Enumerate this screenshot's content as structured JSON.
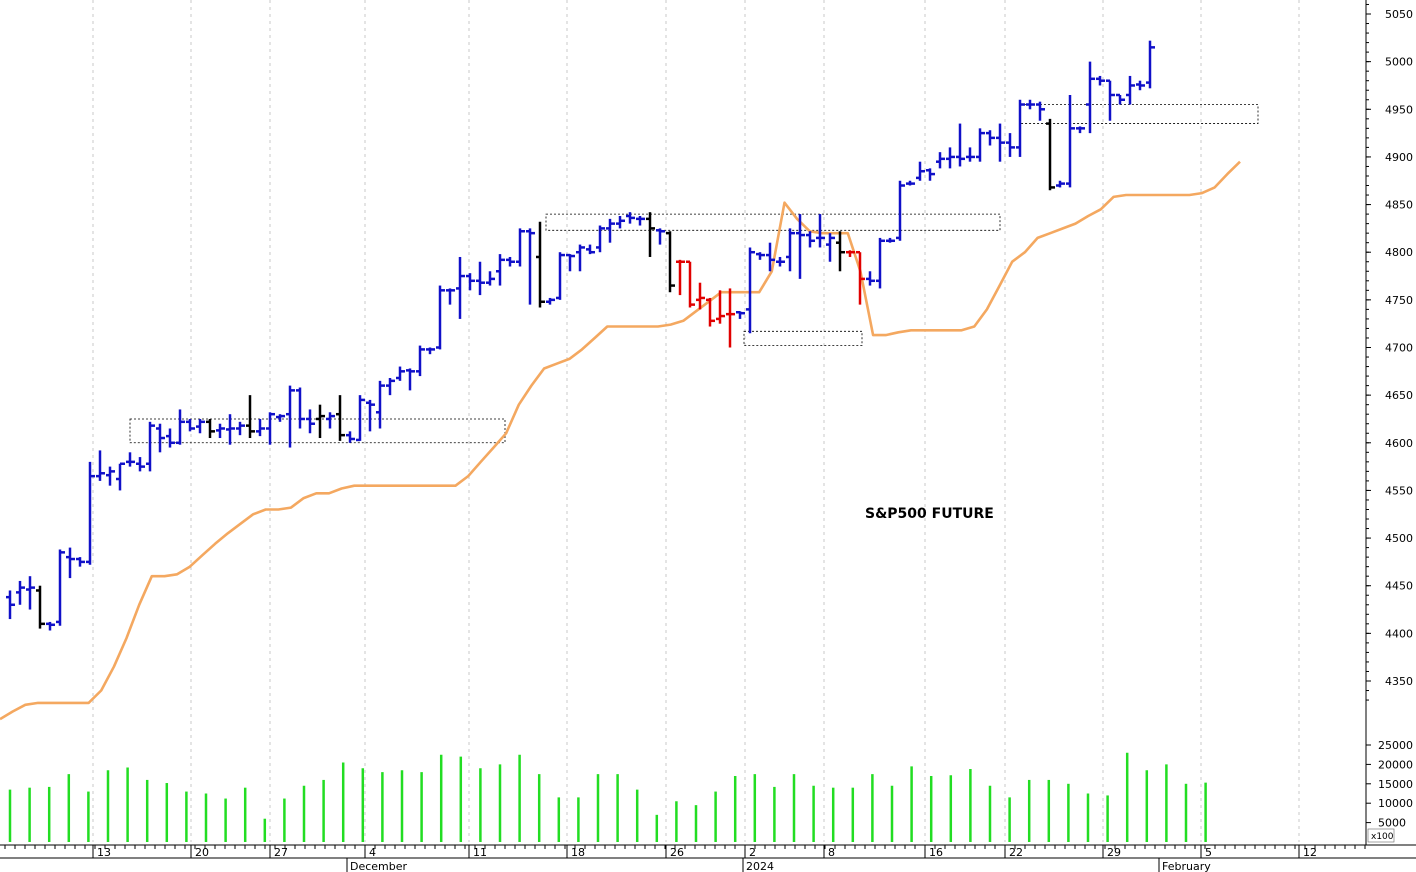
{
  "chart_data": {
    "type": "ohlc",
    "title": "S&P500 FUTURE",
    "colors": {
      "up": "#1010c8",
      "neutral": "#000000",
      "down": "#e00000",
      "trail": "#f4a860",
      "volume": "#22dd22",
      "grid": "#c8c8c8",
      "box": "#000000"
    },
    "y_ticks": [
      "4350",
      "4400",
      "4450",
      "4500",
      "4550",
      "4600",
      "4650",
      "4700",
      "4750",
      "4800",
      "4850",
      "4900",
      "4950",
      "5000",
      "5050"
    ],
    "ylim": [
      4310,
      5065
    ],
    "volume_ticks": [
      "5000",
      "10000",
      "15000",
      "20000",
      "25000"
    ],
    "volume_unit": "x100",
    "x_day_labels": [
      "13",
      "20",
      "27",
      "4",
      "11",
      "18",
      "26",
      "2",
      "8",
      "16",
      "22",
      "29",
      "5",
      "12"
    ],
    "x_month_labels": [
      "December",
      "2024",
      "February"
    ],
    "bars": [
      {
        "h": 4445,
        "l": 4415,
        "c": 4430,
        "o": 4438,
        "col": "up"
      },
      {
        "h": 4455,
        "l": 4430,
        "c": 4448,
        "o": 4443,
        "col": "up"
      },
      {
        "h": 4460,
        "l": 4425,
        "c": 4448,
        "o": 4446,
        "col": "up"
      },
      {
        "h": 4450,
        "l": 4405,
        "c": 4410,
        "o": 4445,
        "col": "neutral"
      },
      {
        "h": 4412,
        "l": 4403,
        "c": 4409,
        "o": 4410,
        "col": "up"
      },
      {
        "h": 4488,
        "l": 4408,
        "c": 4485,
        "o": 4412,
        "col": "up"
      },
      {
        "h": 4490,
        "l": 4458,
        "c": 4478,
        "o": 4480,
        "col": "up"
      },
      {
        "h": 4480,
        "l": 4470,
        "c": 4475,
        "o": 4478,
        "col": "up"
      },
      {
        "h": 4580,
        "l": 4472,
        "c": 4565,
        "o": 4475,
        "col": "up"
      },
      {
        "h": 4592,
        "l": 4560,
        "c": 4568,
        "o": 4565,
        "col": "up"
      },
      {
        "h": 4575,
        "l": 4555,
        "c": 4570,
        "o": 4566,
        "col": "up"
      },
      {
        "h": 4578,
        "l": 4550,
        "c": 4578,
        "o": 4562,
        "col": "up"
      },
      {
        "h": 4590,
        "l": 4575,
        "c": 4580,
        "o": 4580,
        "col": "up"
      },
      {
        "h": 4585,
        "l": 4570,
        "c": 4575,
        "o": 4578,
        "col": "up"
      },
      {
        "h": 4622,
        "l": 4570,
        "c": 4618,
        "o": 4578,
        "col": "up"
      },
      {
        "h": 4620,
        "l": 4590,
        "c": 4605,
        "o": 4615,
        "col": "up"
      },
      {
        "h": 4615,
        "l": 4595,
        "c": 4600,
        "o": 4607,
        "col": "up"
      },
      {
        "h": 4635,
        "l": 4598,
        "c": 4622,
        "o": 4600,
        "col": "up"
      },
      {
        "h": 4625,
        "l": 4612,
        "c": 4615,
        "o": 4622,
        "col": "up"
      },
      {
        "h": 4625,
        "l": 4610,
        "c": 4622,
        "o": 4617,
        "col": "up"
      },
      {
        "h": 4625,
        "l": 4605,
        "c": 4612,
        "o": 4622,
        "col": "neutral"
      },
      {
        "h": 4620,
        "l": 4605,
        "c": 4615,
        "o": 4613,
        "col": "up"
      },
      {
        "h": 4630,
        "l": 4598,
        "c": 4615,
        "o": 4614,
        "col": "up"
      },
      {
        "h": 4622,
        "l": 4608,
        "c": 4618,
        "o": 4615,
        "col": "up"
      },
      {
        "h": 4650,
        "l": 4605,
        "c": 4612,
        "o": 4618,
        "col": "neutral"
      },
      {
        "h": 4625,
        "l": 4607,
        "c": 4615,
        "o": 4612,
        "col": "up"
      },
      {
        "h": 4632,
        "l": 4598,
        "c": 4630,
        "o": 4615,
        "col": "up"
      },
      {
        "h": 4630,
        "l": 4622,
        "c": 4628,
        "o": 4627,
        "col": "up"
      },
      {
        "h": 4660,
        "l": 4595,
        "c": 4655,
        "o": 4630,
        "col": "up"
      },
      {
        "h": 4658,
        "l": 4615,
        "c": 4625,
        "o": 4655,
        "col": "up"
      },
      {
        "h": 4635,
        "l": 4610,
        "c": 4620,
        "o": 4625,
        "col": "up"
      },
      {
        "h": 4640,
        "l": 4605,
        "c": 4628,
        "o": 4625,
        "col": "neutral"
      },
      {
        "h": 4632,
        "l": 4615,
        "c": 4628,
        "o": 4625,
        "col": "up"
      },
      {
        "h": 4650,
        "l": 4602,
        "c": 4608,
        "o": 4630,
        "col": "neutral"
      },
      {
        "h": 4612,
        "l": 4600,
        "c": 4604,
        "o": 4608,
        "col": "up"
      },
      {
        "h": 4650,
        "l": 4602,
        "c": 4645,
        "o": 4603,
        "col": "up"
      },
      {
        "h": 4645,
        "l": 4612,
        "c": 4640,
        "o": 4642,
        "col": "up"
      },
      {
        "h": 4665,
        "l": 4615,
        "c": 4660,
        "o": 4632,
        "col": "up"
      },
      {
        "h": 4668,
        "l": 4650,
        "c": 4665,
        "o": 4660,
        "col": "up"
      },
      {
        "h": 4680,
        "l": 4665,
        "c": 4675,
        "o": 4668,
        "col": "up"
      },
      {
        "h": 4678,
        "l": 4655,
        "c": 4675,
        "o": 4676,
        "col": "up"
      },
      {
        "h": 4702,
        "l": 4670,
        "c": 4698,
        "o": 4675,
        "col": "up"
      },
      {
        "h": 4700,
        "l": 4693,
        "c": 4698,
        "o": 4698,
        "col": "up"
      },
      {
        "h": 4765,
        "l": 4698,
        "c": 4760,
        "o": 4700,
        "col": "up"
      },
      {
        "h": 4762,
        "l": 4745,
        "c": 4760,
        "o": 4760,
        "col": "up"
      },
      {
        "h": 4795,
        "l": 4730,
        "c": 4775,
        "o": 4762,
        "col": "up"
      },
      {
        "h": 4778,
        "l": 4760,
        "c": 4770,
        "o": 4775,
        "col": "up"
      },
      {
        "h": 4790,
        "l": 4755,
        "c": 4768,
        "o": 4770,
        "col": "up"
      },
      {
        "h": 4780,
        "l": 4765,
        "c": 4772,
        "o": 4768,
        "col": "up"
      },
      {
        "h": 4798,
        "l": 4765,
        "c": 4792,
        "o": 4780,
        "col": "up"
      },
      {
        "h": 4795,
        "l": 4785,
        "c": 4790,
        "o": 4792,
        "col": "up"
      },
      {
        "h": 4825,
        "l": 4785,
        "c": 4822,
        "o": 4790,
        "col": "up"
      },
      {
        "h": 4825,
        "l": 4745,
        "c": 4820,
        "o": 4822,
        "col": "up"
      },
      {
        "h": 4832,
        "l": 4742,
        "c": 4748,
        "o": 4795,
        "col": "neutral"
      },
      {
        "h": 4752,
        "l": 4745,
        "c": 4750,
        "o": 4748,
        "col": "up"
      },
      {
        "h": 4800,
        "l": 4750,
        "c": 4797,
        "o": 4752,
        "col": "up"
      },
      {
        "h": 4798,
        "l": 4780,
        "c": 4796,
        "o": 4797,
        "col": "up"
      },
      {
        "h": 4808,
        "l": 4780,
        "c": 4805,
        "o": 4800,
        "col": "up"
      },
      {
        "h": 4808,
        "l": 4798,
        "c": 4800,
        "o": 4803,
        "col": "up"
      },
      {
        "h": 4828,
        "l": 4800,
        "c": 4825,
        "o": 4805,
        "col": "up"
      },
      {
        "h": 4835,
        "l": 4810,
        "c": 4830,
        "o": 4825,
        "col": "up"
      },
      {
        "h": 4838,
        "l": 4825,
        "c": 4833,
        "o": 4830,
        "col": "up"
      },
      {
        "h": 4842,
        "l": 4830,
        "c": 4836,
        "o": 4838,
        "col": "up"
      },
      {
        "h": 4838,
        "l": 4828,
        "c": 4835,
        "o": 4835,
        "col": "up"
      },
      {
        "h": 4842,
        "l": 4795,
        "c": 4825,
        "o": 4835,
        "col": "neutral"
      },
      {
        "h": 4825,
        "l": 4808,
        "c": 4822,
        "o": 4823,
        "col": "up"
      },
      {
        "h": 4822,
        "l": 4758,
        "c": 4765,
        "o": 4820,
        "col": "neutral"
      },
      {
        "h": 4792,
        "l": 4755,
        "c": 4790,
        "o": 4790,
        "col": "down"
      },
      {
        "h": 4790,
        "l": 4742,
        "c": 4745,
        "o": 4790,
        "col": "down"
      },
      {
        "h": 4768,
        "l": 4740,
        "c": 4752,
        "o": 4750,
        "col": "down"
      },
      {
        "h": 4752,
        "l": 4722,
        "c": 4728,
        "o": 4750,
        "col": "down"
      },
      {
        "h": 4760,
        "l": 4725,
        "c": 4733,
        "o": 4730,
        "col": "down"
      },
      {
        "h": 4762,
        "l": 4700,
        "c": 4735,
        "o": 4735,
        "col": "down"
      },
      {
        "h": 4738,
        "l": 4730,
        "c": 4736,
        "o": 4737,
        "col": "up"
      },
      {
        "h": 4805,
        "l": 4715,
        "c": 4800,
        "o": 4740,
        "col": "up"
      },
      {
        "h": 4800,
        "l": 4792,
        "c": 4797,
        "o": 4798,
        "col": "up"
      },
      {
        "h": 4810,
        "l": 4780,
        "c": 4792,
        "o": 4797,
        "col": "up"
      },
      {
        "h": 4795,
        "l": 4785,
        "c": 4790,
        "o": 4790,
        "col": "up"
      },
      {
        "h": 4825,
        "l": 4780,
        "c": 4820,
        "o": 4795,
        "col": "up"
      },
      {
        "h": 4840,
        "l": 4772,
        "c": 4818,
        "o": 4820,
        "col": "up"
      },
      {
        "h": 4822,
        "l": 4805,
        "c": 4812,
        "o": 4818,
        "col": "up"
      },
      {
        "h": 4840,
        "l": 4805,
        "c": 4815,
        "o": 4815,
        "col": "up"
      },
      {
        "h": 4820,
        "l": 4790,
        "c": 4815,
        "o": 4808,
        "col": "up"
      },
      {
        "h": 4822,
        "l": 4780,
        "c": 4800,
        "o": 4810,
        "col": "neutral"
      },
      {
        "h": 4802,
        "l": 4795,
        "c": 4800,
        "o": 4800,
        "col": "down"
      },
      {
        "h": 4800,
        "l": 4745,
        "c": 4772,
        "o": 4800,
        "col": "down"
      },
      {
        "h": 4780,
        "l": 4765,
        "c": 4770,
        "o": 4772,
        "col": "up"
      },
      {
        "h": 4815,
        "l": 4762,
        "c": 4812,
        "o": 4770,
        "col": "up"
      },
      {
        "h": 4815,
        "l": 4810,
        "c": 4812,
        "o": 4812,
        "col": "up"
      },
      {
        "h": 4875,
        "l": 4812,
        "c": 4870,
        "o": 4815,
        "col": "up"
      },
      {
        "h": 4875,
        "l": 4870,
        "c": 4872,
        "o": 4872,
        "col": "up"
      },
      {
        "h": 4895,
        "l": 4875,
        "c": 4885,
        "o": 4878,
        "col": "up"
      },
      {
        "h": 4888,
        "l": 4875,
        "c": 4882,
        "o": 4886,
        "col": "up"
      },
      {
        "h": 4905,
        "l": 4888,
        "c": 4898,
        "o": 4895,
        "col": "up"
      },
      {
        "h": 4910,
        "l": 4888,
        "c": 4900,
        "o": 4898,
        "col": "up"
      },
      {
        "h": 4935,
        "l": 4890,
        "c": 4898,
        "o": 4900,
        "col": "up"
      },
      {
        "h": 4910,
        "l": 4895,
        "c": 4900,
        "o": 4900,
        "col": "up"
      },
      {
        "h": 4930,
        "l": 4895,
        "c": 4925,
        "o": 4900,
        "col": "up"
      },
      {
        "h": 4928,
        "l": 4912,
        "c": 4920,
        "o": 4925,
        "col": "up"
      },
      {
        "h": 4935,
        "l": 4895,
        "c": 4915,
        "o": 4920,
        "col": "up"
      },
      {
        "h": 4925,
        "l": 4900,
        "c": 4910,
        "o": 4915,
        "col": "up"
      },
      {
        "h": 4960,
        "l": 4900,
        "c": 4955,
        "o": 4910,
        "col": "up"
      },
      {
        "h": 4960,
        "l": 4950,
        "c": 4955,
        "o": 4955,
        "col": "up"
      },
      {
        "h": 4958,
        "l": 4938,
        "c": 4950,
        "o": 4955,
        "col": "up"
      },
      {
        "h": 4940,
        "l": 4865,
        "c": 4868,
        "o": 4935,
        "col": "neutral"
      },
      {
        "h": 4875,
        "l": 4868,
        "c": 4872,
        "o": 4870,
        "col": "up"
      },
      {
        "h": 4965,
        "l": 4868,
        "c": 4930,
        "o": 4872,
        "col": "up"
      },
      {
        "h": 4932,
        "l": 4925,
        "c": 4930,
        "o": 4930,
        "col": "up"
      },
      {
        "h": 5000,
        "l": 4925,
        "c": 4982,
        "o": 4955,
        "col": "up"
      },
      {
        "h": 4985,
        "l": 4975,
        "c": 4980,
        "o": 4982,
        "col": "up"
      },
      {
        "h": 4980,
        "l": 4938,
        "c": 4965,
        "o": 4980,
        "col": "up"
      },
      {
        "h": 4965,
        "l": 4955,
        "c": 4960,
        "o": 4965,
        "col": "up"
      },
      {
        "h": 4985,
        "l": 4955,
        "c": 4975,
        "o": 4965,
        "col": "up"
      },
      {
        "h": 4980,
        "l": 4970,
        "c": 4975,
        "o": 4976,
        "col": "up"
      },
      {
        "h": 5022,
        "l": 4972,
        "c": 5015,
        "o": 4978,
        "col": "up"
      }
    ],
    "trail": [
      4310,
      4318,
      4325,
      4327,
      4327,
      4327,
      4327,
      4327,
      4340,
      4365,
      4395,
      4430,
      4460,
      4460,
      4462,
      4470,
      4482,
      4494,
      4505,
      4515,
      4525,
      4530,
      4530,
      4532,
      4542,
      4547,
      4547,
      4552,
      4555,
      4555,
      4555,
      4555,
      4555,
      4555,
      4555,
      4555,
      4555,
      4565,
      4580,
      4595,
      4610,
      4640,
      4660,
      4678,
      4683,
      4688,
      4698,
      4710,
      4722,
      4722,
      4722,
      4722,
      4722,
      4724,
      4728,
      4738,
      4748,
      4758,
      4758,
      4758,
      4758,
      4780,
      4852,
      4835,
      4822,
      4820,
      4820,
      4820,
      4780,
      4713,
      4713,
      4716,
      4718,
      4718,
      4718,
      4718,
      4718,
      4722,
      4740,
      4765,
      4790,
      4800,
      4815,
      4820,
      4825,
      4830,
      4838,
      4845,
      4858,
      4860,
      4860,
      4860,
      4860,
      4860,
      4860,
      4862,
      4868,
      4882,
      4895
    ],
    "trail_xrange": [
      0,
      1240
    ],
    "volume": [
      13500,
      14000,
      14200,
      17500,
      13000,
      18500,
      19200,
      16000,
      15200,
      13000,
      12500,
      11200,
      14000,
      6000,
      11200,
      14500,
      16000,
      20500,
      19000,
      18000,
      18500,
      18000,
      22500,
      22000,
      19000,
      20000,
      22500,
      17500,
      11500,
      11500,
      17500,
      17500,
      13500,
      7000,
      10500,
      9500,
      13000,
      17000,
      17500,
      14200,
      17500,
      14500,
      14000,
      14000,
      17500,
      14500,
      19500,
      17000,
      17200,
      18800,
      14500,
      11500,
      16000,
      16000,
      15000,
      12500,
      12000,
      23000,
      18500,
      20000,
      15000,
      15300
    ],
    "trading_ranges": [
      {
        "from": 4600,
        "to": 4625,
        "x0": 130,
        "x1": 505
      },
      {
        "from": 4823,
        "to": 4840,
        "x0": 546,
        "x1": 1000
      },
      {
        "from": 4702,
        "to": 4717,
        "x0": 744,
        "x1": 862
      },
      {
        "from": 4935,
        "to": 4955,
        "x0": 1020,
        "x1": 1258
      }
    ]
  }
}
